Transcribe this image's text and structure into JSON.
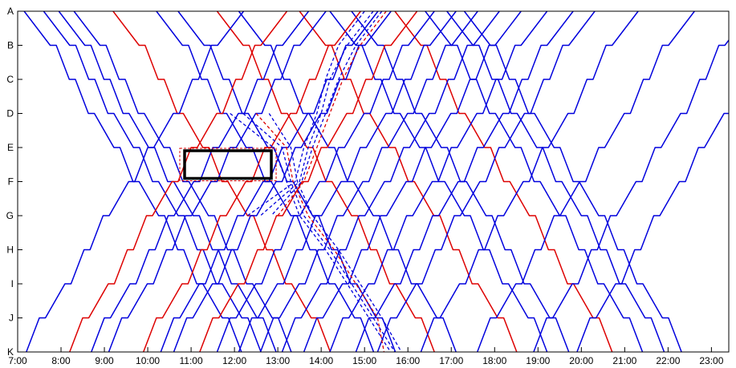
{
  "chart_data": {
    "type": "line",
    "title": "",
    "xlabel": "",
    "ylabel": "",
    "x_ticks": [
      "7:00",
      "8:00",
      "9:00",
      "10:00",
      "11:00",
      "12:00",
      "13:00",
      "14:00",
      "15:00",
      "16:00",
      "17:00",
      "18:00",
      "19:00",
      "20:00",
      "21:00",
      "22:00",
      "23:00"
    ],
    "y_ticks": [
      "A",
      "B",
      "C",
      "D",
      "E",
      "F",
      "G",
      "H",
      "I",
      "J",
      "K"
    ],
    "xlim": [
      7.0,
      23.4
    ],
    "colors": {
      "main": "#0000dd",
      "highlight": "#dd0000",
      "blockage": "#000000"
    },
    "blockage": {
      "x": [
        10.85,
        12.85
      ],
      "stations": [
        "E",
        "F"
      ]
    },
    "dwell_hours": 0.14,
    "series": [
      {
        "color": "blue",
        "dir": "down",
        "start": 7.15
      },
      {
        "color": "blue",
        "dir": "down",
        "start": 7.6
      },
      {
        "color": "blue",
        "dir": "down",
        "start": 7.95
      },
      {
        "color": "blue",
        "dir": "down",
        "start": 8.3
      },
      {
        "color": "red",
        "dir": "down",
        "start": 9.2
      },
      {
        "color": "blue",
        "dir": "down",
        "start": 10.2
      },
      {
        "color": "blue",
        "dir": "down",
        "start": 10.7
      },
      {
        "color": "red",
        "dir": "down",
        "start": 11.6
      },
      {
        "color": "blue",
        "dir": "down",
        "start": 12.1
      },
      {
        "color": "red",
        "dir": "down",
        "start": 13.5
      },
      {
        "color": "blue",
        "dir": "down",
        "start": 14.2
      },
      {
        "color": "blue",
        "dir": "down",
        "start": 14.7
      },
      {
        "color": "red",
        "dir": "down",
        "start": 15.7
      },
      {
        "color": "blue",
        "dir": "down",
        "start": 16.4
      },
      {
        "color": "blue",
        "dir": "down",
        "start": 16.9
      },
      {
        "color": "blue",
        "dir": "down",
        "start": 17.3
      },
      {
        "color": "blue",
        "dir": "up",
        "start": 7.2
      },
      {
        "color": "red",
        "dir": "up",
        "start": 8.2
      },
      {
        "color": "blue",
        "dir": "up",
        "start": 8.7
      },
      {
        "color": "blue",
        "dir": "up",
        "start": 9.1
      },
      {
        "color": "red",
        "dir": "up",
        "start": 9.9
      },
      {
        "color": "blue",
        "dir": "up",
        "start": 10.3
      },
      {
        "color": "blue",
        "dir": "up",
        "start": 10.6
      },
      {
        "color": "red",
        "dir": "up",
        "start": 11.2
      },
      {
        "color": "blue",
        "dir": "up",
        "start": 11.6
      },
      {
        "color": "blue",
        "dir": "up",
        "start": 12.1
      },
      {
        "color": "blue",
        "dir": "up",
        "start": 12.6
      },
      {
        "color": "blue",
        "dir": "up",
        "start": 13.1
      },
      {
        "color": "blue",
        "dir": "up",
        "start": 13.6
      },
      {
        "color": "blue",
        "dir": "up",
        "start": 14.2
      },
      {
        "color": "blue",
        "dir": "up",
        "start": 14.8
      },
      {
        "color": "blue",
        "dir": "up",
        "start": 15.3
      },
      {
        "color": "blue",
        "dir": "up",
        "start": 16.3
      },
      {
        "color": "blue",
        "dir": "up",
        "start": 17.6
      },
      {
        "color": "blue",
        "dir": "up",
        "start": 18.9
      },
      {
        "color": "blue",
        "dir": "up",
        "start": 19.9
      }
    ],
    "rerouted": [
      {
        "color": "blue",
        "points": [
          [
            11.9,
            3
          ],
          [
            12.9,
            4
          ],
          [
            13.2,
            5
          ],
          [
            13.5,
            6
          ],
          [
            14.1,
            7
          ],
          [
            14.6,
            8
          ],
          [
            15.1,
            9
          ],
          [
            15.6,
            10
          ]
        ]
      },
      {
        "color": "blue",
        "points": [
          [
            12.2,
            3
          ],
          [
            13.1,
            4
          ],
          [
            13.3,
            5
          ],
          [
            13.6,
            6
          ],
          [
            14.2,
            7
          ],
          [
            14.7,
            8
          ],
          [
            15.2,
            9
          ],
          [
            15.7,
            10
          ]
        ]
      },
      {
        "color": "red",
        "points": [
          [
            12.5,
            3
          ],
          [
            13.2,
            4
          ],
          [
            13.35,
            5
          ],
          [
            13.7,
            6
          ],
          [
            14.3,
            7
          ],
          [
            14.8,
            8
          ],
          [
            15.3,
            9
          ],
          [
            15.45,
            10
          ]
        ]
      },
      {
        "color": "blue",
        "points": [
          [
            12.8,
            3
          ],
          [
            13.3,
            4
          ],
          [
            13.45,
            5
          ],
          [
            13.8,
            6
          ],
          [
            14.4,
            7
          ],
          [
            14.9,
            8
          ],
          [
            15.4,
            9
          ],
          [
            15.85,
            10
          ]
        ]
      },
      {
        "color": "blue",
        "points": [
          [
            15.0,
            0
          ],
          [
            14.4,
            1
          ],
          [
            14.1,
            2
          ],
          [
            13.9,
            3
          ],
          [
            13.6,
            4
          ],
          [
            13.4,
            5
          ],
          [
            12.3,
            6
          ]
        ]
      },
      {
        "color": "blue",
        "points": [
          [
            15.2,
            0
          ],
          [
            14.6,
            1
          ],
          [
            14.2,
            2
          ],
          [
            14.0,
            3
          ],
          [
            13.7,
            4
          ],
          [
            13.5,
            5
          ],
          [
            12.6,
            6
          ]
        ]
      },
      {
        "color": "blue",
        "points": [
          [
            15.4,
            0
          ],
          [
            14.8,
            1
          ],
          [
            14.4,
            2
          ],
          [
            14.1,
            3
          ],
          [
            13.8,
            4
          ],
          [
            13.55,
            5
          ],
          [
            12.85,
            6
          ]
        ]
      },
      {
        "color": "red",
        "points": [
          [
            15.5,
            0
          ],
          [
            14.9,
            1
          ],
          [
            14.5,
            2
          ],
          [
            14.2,
            3
          ],
          [
            13.9,
            4
          ],
          [
            13.6,
            5
          ],
          [
            13.0,
            6
          ]
        ]
      }
    ]
  }
}
